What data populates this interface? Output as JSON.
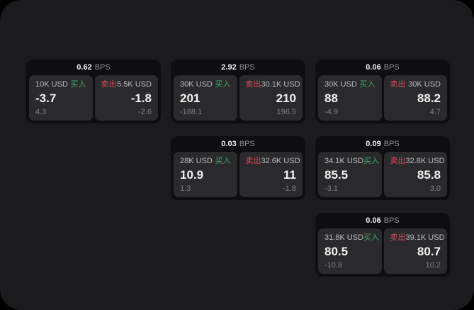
{
  "labels": {
    "bps": "BPS",
    "buy": "买入",
    "sell": "卖出"
  },
  "colors": {
    "page-bg": "#1b1b1d",
    "card-bg": "#0e0e10",
    "panel-bg": "#2a2a2c",
    "buy": "#3da56b",
    "sell": "#d24b5e",
    "text-main": "#f2f2f3",
    "text-label": "#bdbdc0",
    "text-faint": "#7f7f84",
    "bps-unit": "#919195"
  },
  "cards": [
    {
      "bps": "0.62",
      "buy": {
        "amount": "10K USD",
        "value": "-3.7",
        "sub": "4.3"
      },
      "sell": {
        "amount": "5.5K USD",
        "value": "-1.8",
        "sub": "-2.6"
      }
    },
    {
      "bps": "2.92",
      "buy": {
        "amount": "30K USD",
        "value": "201",
        "sub": "-188.1"
      },
      "sell": {
        "amount": "30.1K USD",
        "value": "210",
        "sub": "196.5"
      }
    },
    {
      "bps": "0.06",
      "buy": {
        "amount": "30K USD",
        "value": "88",
        "sub": "-4.9"
      },
      "sell": {
        "amount": "30K USD",
        "value": "88.2",
        "sub": "4.7"
      }
    },
    {
      "bps": "0.03",
      "buy": {
        "amount": "28K USD",
        "value": "10.9",
        "sub": "1.3"
      },
      "sell": {
        "amount": "32.6K USD",
        "value": "11",
        "sub": "-1.8"
      }
    },
    {
      "bps": "0.09",
      "buy": {
        "amount": "34.1K USD",
        "value": "85.5",
        "sub": "-3.1"
      },
      "sell": {
        "amount": "32.8K USD",
        "value": "85.8",
        "sub": "3.0"
      }
    },
    {
      "bps": "0.06",
      "buy": {
        "amount": "31.8K USD",
        "value": "80.5",
        "sub": "-10.8"
      },
      "sell": {
        "amount": "39.1K USD",
        "value": "80.7",
        "sub": "10.2"
      }
    }
  ]
}
